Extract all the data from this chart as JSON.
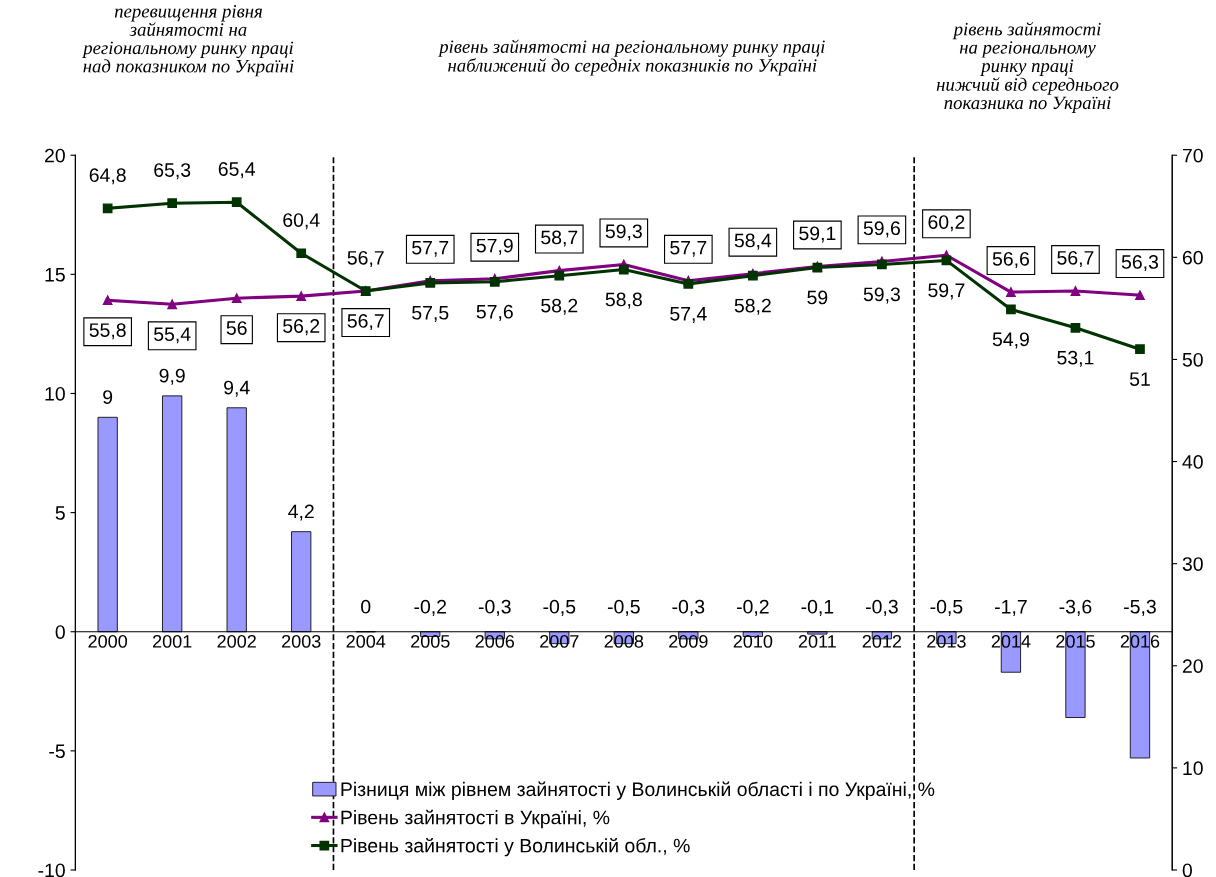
{
  "chart_data": {
    "type": "bar",
    "categories": [
      "2000",
      "2001",
      "2002",
      "2003",
      "2004",
      "2005",
      "2006",
      "2007",
      "2008",
      "2009",
      "2010",
      "2011",
      "2012",
      "2013",
      "2014",
      "2015",
      "2016"
    ],
    "series": [
      {
        "name": "Різниця між рівнем зайнятості у Волинській області і по Україні, %",
        "color": "#9999ff",
        "values": [
          9,
          9.9,
          9.4,
          4.2,
          0,
          -0.2,
          -0.3,
          -0.5,
          -0.5,
          -0.3,
          -0.2,
          -0.1,
          -0.3,
          -0.5,
          -1.7,
          -3.6,
          -5.3
        ],
        "value_labels": [
          "9",
          "9,9",
          "9,4",
          "4,2",
          "0",
          "-0,2",
          "-0,3",
          "-0,5",
          "-0,5",
          "-0,3",
          "-0,2",
          "-0,1",
          "-0,3",
          "-0,5",
          "-1,7",
          "-3,6",
          "-5,3"
        ]
      },
      {
        "name": "Рівень зайнятості в Україні, %",
        "type": "line",
        "axis": "y2",
        "marker": "triangle",
        "color": "#800080",
        "values": [
          55.8,
          55.4,
          56,
          56.2,
          56.7,
          57.7,
          57.9,
          58.7,
          59.3,
          57.7,
          58.4,
          59.1,
          59.6,
          60.2,
          56.6,
          56.7,
          56.3
        ],
        "value_labels": [
          "55,8",
          "55,4",
          "56",
          "56,2",
          "56,7",
          "57,7",
          "57,9",
          "58,7",
          "59,3",
          "57,7",
          "58,4",
          "59,1",
          "59,6",
          "60,2",
          "56,6",
          "56,7",
          "56,3"
        ]
      },
      {
        "name": "Рівень зайнятості у Волинській обл., %",
        "type": "line",
        "axis": "y2",
        "marker": "square",
        "color": "#003300",
        "values": [
          64.8,
          65.3,
          65.4,
          60.4,
          56.7,
          57.5,
          57.6,
          58.2,
          58.8,
          57.4,
          58.2,
          59,
          59.3,
          59.7,
          54.9,
          53.1,
          51
        ],
        "value_labels": [
          "64,8",
          "65,3",
          "65,4",
          "60,4",
          "56,7",
          "57,5",
          "57,6",
          "58,2",
          "58,8",
          "57,4",
          "58,2",
          "59",
          "59,3",
          "59,7",
          "54,9",
          "53,1",
          "51"
        ]
      }
    ],
    "ylim": [
      -10,
      20
    ],
    "yticks": [
      -10,
      -5,
      0,
      5,
      10,
      15,
      20
    ],
    "y2lim": [
      0,
      70
    ],
    "y2ticks": [
      0,
      10,
      20,
      30,
      40,
      50,
      60,
      70
    ],
    "annotations": [
      "перевищення рівня\nзайнятості на\nрегіональному ринку праці\nнад показником по Україні",
      "рівень зайнятості на регіональному ринку праці\nнаближений до середніх показників по Україні",
      "рівень зайнятості\nна регіональному\nринку праці\nнижчий від середнього\nпоказника по Україні"
    ],
    "grid": false,
    "legend": "bottom",
    "line_style": "solid"
  }
}
